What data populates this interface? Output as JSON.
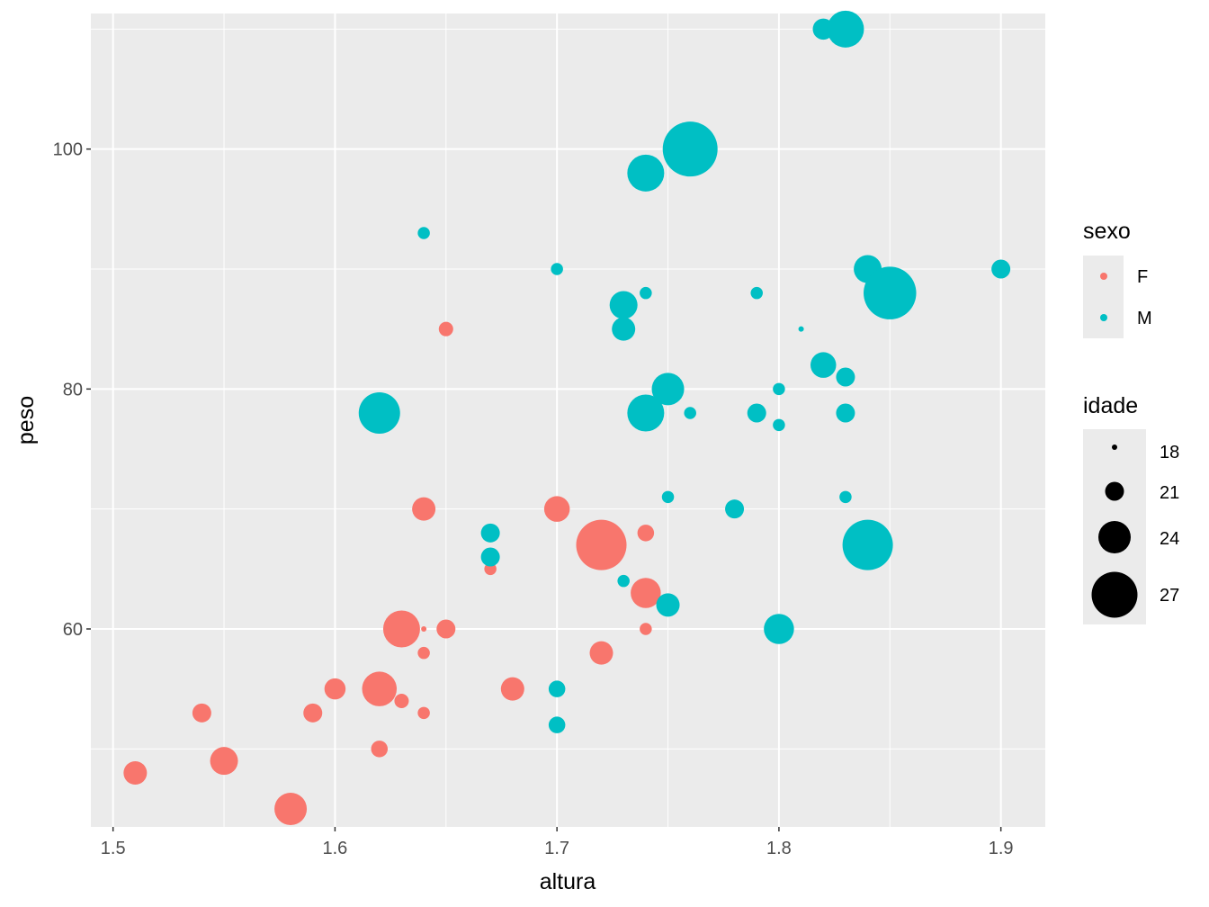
{
  "chart_data": {
    "type": "scatter",
    "xlabel": "altura",
    "ylabel": "peso",
    "xlim": [
      1.49,
      1.92
    ],
    "ylim": [
      43.5,
      111.3
    ],
    "x_ticks": [
      1.5,
      1.6,
      1.7,
      1.8,
      1.9
    ],
    "x_tick_labels": [
      "1.5",
      "1.6",
      "1.7",
      "1.8",
      "1.9"
    ],
    "y_ticks": [
      60,
      80,
      100
    ],
    "y_tick_labels": [
      "60",
      "80",
      "100"
    ],
    "grid": true,
    "color_legend": {
      "title": "sexo",
      "entries": [
        {
          "label": "F",
          "color": "#F8766D"
        },
        {
          "label": "M",
          "color": "#00BFC4"
        }
      ]
    },
    "size_legend": {
      "title": "idade",
      "entries": [
        {
          "label": "18",
          "value": 18
        },
        {
          "label": "21",
          "value": 21
        },
        {
          "label": "24",
          "value": 24
        },
        {
          "label": "27",
          "value": 27
        }
      ]
    },
    "series": [
      {
        "name": "F",
        "color": "#F8766D",
        "points": [
          {
            "x": 1.51,
            "y": 48,
            "idade": 22
          },
          {
            "x": 1.54,
            "y": 53,
            "idade": 21
          },
          {
            "x": 1.55,
            "y": 49,
            "idade": 23
          },
          {
            "x": 1.58,
            "y": 45,
            "idade": 24
          },
          {
            "x": 1.59,
            "y": 53,
            "idade": 21
          },
          {
            "x": 1.6,
            "y": 55,
            "idade": 21.5
          },
          {
            "x": 1.62,
            "y": 55,
            "idade": 24.5
          },
          {
            "x": 1.62,
            "y": 50,
            "idade": 20.5
          },
          {
            "x": 1.63,
            "y": 60,
            "idade": 25
          },
          {
            "x": 1.63,
            "y": 54,
            "idade": 20
          },
          {
            "x": 1.64,
            "y": 70,
            "idade": 22
          },
          {
            "x": 1.64,
            "y": 60,
            "idade": 18
          },
          {
            "x": 1.64,
            "y": 58,
            "idade": 19.5
          },
          {
            "x": 1.64,
            "y": 53,
            "idade": 19.5
          },
          {
            "x": 1.65,
            "y": 85,
            "idade": 20
          },
          {
            "x": 1.65,
            "y": 60,
            "idade": 21
          },
          {
            "x": 1.67,
            "y": 65,
            "idade": 19.5
          },
          {
            "x": 1.68,
            "y": 55,
            "idade": 22
          },
          {
            "x": 1.7,
            "y": 70,
            "idade": 22.5
          },
          {
            "x": 1.72,
            "y": 67,
            "idade": 28
          },
          {
            "x": 1.72,
            "y": 58,
            "idade": 22
          },
          {
            "x": 1.74,
            "y": 68,
            "idade": 20.5
          },
          {
            "x": 1.74,
            "y": 63,
            "idade": 23.5
          },
          {
            "x": 1.74,
            "y": 60,
            "idade": 19.5
          }
        ]
      },
      {
        "name": "M",
        "color": "#00BFC4",
        "points": [
          {
            "x": 1.62,
            "y": 78,
            "idade": 26
          },
          {
            "x": 1.64,
            "y": 93,
            "idade": 19.5
          },
          {
            "x": 1.67,
            "y": 68,
            "idade": 21
          },
          {
            "x": 1.67,
            "y": 66,
            "idade": 21
          },
          {
            "x": 1.7,
            "y": 90,
            "idade": 19.5
          },
          {
            "x": 1.7,
            "y": 55,
            "idade": 20.5
          },
          {
            "x": 1.7,
            "y": 52,
            "idade": 20.5
          },
          {
            "x": 1.73,
            "y": 87,
            "idade": 23
          },
          {
            "x": 1.73,
            "y": 85,
            "idade": 22
          },
          {
            "x": 1.73,
            "y": 64,
            "idade": 19.5
          },
          {
            "x": 1.74,
            "y": 98,
            "idade": 25
          },
          {
            "x": 1.74,
            "y": 88,
            "idade": 19.5
          },
          {
            "x": 1.74,
            "y": 78,
            "idade": 25
          },
          {
            "x": 1.75,
            "y": 80,
            "idade": 24
          },
          {
            "x": 1.75,
            "y": 71,
            "idade": 19.5
          },
          {
            "x": 1.75,
            "y": 62,
            "idade": 22
          },
          {
            "x": 1.76,
            "y": 100,
            "idade": 29
          },
          {
            "x": 1.76,
            "y": 78,
            "idade": 19.5
          },
          {
            "x": 1.78,
            "y": 70,
            "idade": 21
          },
          {
            "x": 1.79,
            "y": 88,
            "idade": 19.5
          },
          {
            "x": 1.79,
            "y": 78,
            "idade": 21
          },
          {
            "x": 1.8,
            "y": 80,
            "idade": 19.5
          },
          {
            "x": 1.8,
            "y": 77,
            "idade": 19.5
          },
          {
            "x": 1.8,
            "y": 60,
            "idade": 23.5
          },
          {
            "x": 1.81,
            "y": 85,
            "idade": 18
          },
          {
            "x": 1.82,
            "y": 110,
            "idade": 21.5
          },
          {
            "x": 1.82,
            "y": 82,
            "idade": 22.5
          },
          {
            "x": 1.83,
            "y": 110,
            "idade": 25
          },
          {
            "x": 1.83,
            "y": 81,
            "idade": 21
          },
          {
            "x": 1.83,
            "y": 78,
            "idade": 21
          },
          {
            "x": 1.83,
            "y": 71,
            "idade": 19.5
          },
          {
            "x": 1.84,
            "y": 90,
            "idade": 23
          },
          {
            "x": 1.84,
            "y": 67,
            "idade": 28
          },
          {
            "x": 1.85,
            "y": 88,
            "idade": 28.5
          },
          {
            "x": 1.9,
            "y": 90,
            "idade": 21
          }
        ]
      }
    ]
  }
}
